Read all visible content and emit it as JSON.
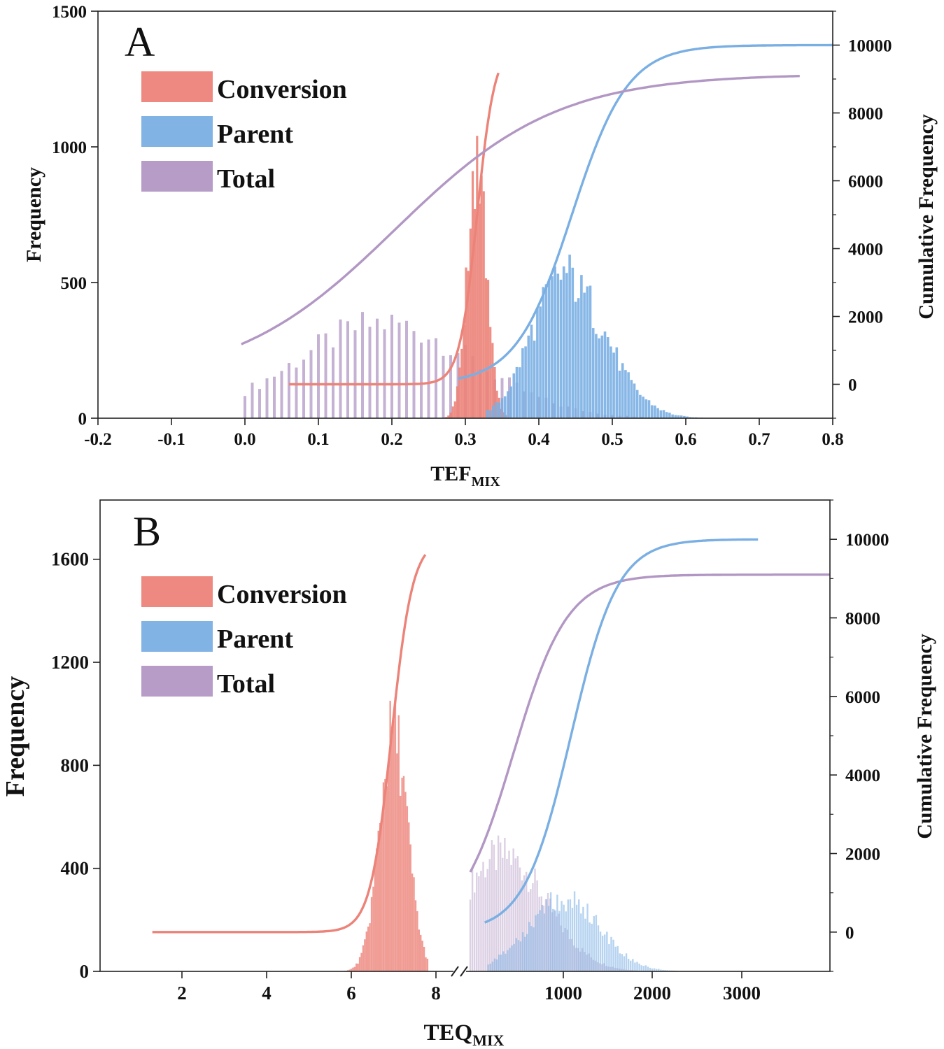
{
  "chart_data": [
    {
      "type": "bar",
      "panel_label": "A",
      "xlabel_main": "TEF",
      "xlabel_sub": "MIX",
      "ylabel": "Frequency",
      "ylabel_right": "Cumulative Frequency",
      "xlim": [
        -0.2,
        0.8
      ],
      "ylim": [
        0,
        1500
      ],
      "ylim_right": [
        -1000,
        11000
      ],
      "x_ticks": [
        "-0.2",
        "-0.1",
        "0.0",
        "0.1",
        "0.2",
        "0.3",
        "0.4",
        "0.5",
        "0.6",
        "0.7",
        "0.8"
      ],
      "x_tick_values": [
        -0.2,
        -0.1,
        0.0,
        0.1,
        0.2,
        0.3,
        0.4,
        0.5,
        0.6,
        0.7,
        0.8
      ],
      "y_ticks": [
        "0",
        "500",
        "1000",
        "1500"
      ],
      "y_tick_values": [
        0,
        500,
        1000,
        1500
      ],
      "y_right_ticks": [
        "0",
        "2000",
        "4000",
        "6000",
        "8000",
        "10000"
      ],
      "y_right_tick_values": [
        0,
        2000,
        4000,
        6000,
        8000,
        10000
      ],
      "legend": [
        {
          "name": "Conversion",
          "color": "#ec8379"
        },
        {
          "name": "Parent",
          "color": "#7aafe3"
        },
        {
          "name": "Total",
          "color": "#b297c4"
        }
      ],
      "series": [
        {
          "name": "Total",
          "kind": "hist",
          "x_start": 0.0,
          "x_end": 0.78,
          "step": 0.01,
          "params": {
            "mu": 0.19,
            "sigma": 0.12,
            "peak": 350
          }
        },
        {
          "name": "Conversion",
          "kind": "hist",
          "x_start": 0.25,
          "x_end": 0.36,
          "step": 0.003,
          "params": {
            "mu": 0.316,
            "sigma": 0.013,
            "peak": 930
          }
        },
        {
          "name": "Parent",
          "kind": "hist",
          "x_start": 0.33,
          "x_end": 0.72,
          "step": 0.004,
          "params": {
            "mu": 0.432,
            "sigma": 0.042,
            "peak": 520,
            "skew": 0.35
          }
        },
        {
          "name": "Conversion",
          "kind": "cumulative",
          "x_start": 0.06,
          "x_end": 0.345,
          "y0": 0,
          "y1": 10000,
          "mid": 0.316,
          "scale": 0.012
        },
        {
          "name": "Parent",
          "kind": "cumulative",
          "x_start": 0.29,
          "x_end": 0.8,
          "y0": 0,
          "y1": 10000,
          "mid": 0.445,
          "scale": 0.038
        },
        {
          "name": "Total",
          "kind": "cumulative",
          "x_start": -0.005,
          "x_end": 0.755,
          "y0": 0,
          "y1": 9150,
          "mid": 0.205,
          "scale": 0.11
        }
      ]
    },
    {
      "type": "bar",
      "panel_label": "B",
      "xlabel_main": "TEQ",
      "xlabel_sub": "MIX",
      "ylabel": "Frequency",
      "ylabel_right": "Cumulative Frequency",
      "x_break": "8",
      "x_ticks": [
        "2",
        "4",
        "6",
        "8",
        "1000",
        "2000",
        "3000"
      ],
      "y_ticks": [
        "0",
        "400",
        "800",
        "1200",
        "1600"
      ],
      "y_tick_values": [
        0,
        400,
        800,
        1200,
        1600
      ],
      "ylim": [
        0,
        1830
      ],
      "ylim_right": [
        -1000,
        11000
      ],
      "y_right_ticks": [
        "0",
        "2000",
        "4000",
        "6000",
        "8000",
        "10000"
      ],
      "y_right_tick_values": [
        0,
        2000,
        4000,
        6000,
        8000,
        10000
      ],
      "legend": [
        {
          "name": "Conversion",
          "color": "#ec8379"
        },
        {
          "name": "Parent",
          "color": "#7aafe3"
        },
        {
          "name": "Total",
          "color": "#b297c4"
        }
      ],
      "series": [
        {
          "name": "Conversion",
          "kind": "hist",
          "axis": "left-segment",
          "x_start": 4.0,
          "x_end": 7.8,
          "step": 0.04,
          "params": {
            "mu": 7.0,
            "sigma": 0.33,
            "peak": 930
          }
        },
        {
          "name": "Total",
          "kind": "hist",
          "axis": "right-segment",
          "x_start": 0.0,
          "x_end": 0.5,
          "step": 0.006,
          "params": {
            "mu": 0.09,
            "sigma": 0.12,
            "peak": 450
          }
        },
        {
          "name": "Parent",
          "kind": "hist",
          "axis": "right-segment",
          "x_start": 0.05,
          "x_end": 0.6,
          "step": 0.006,
          "params": {
            "mu": 0.26,
            "sigma": 0.1,
            "peak": 280
          }
        },
        {
          "name": "Conversion",
          "kind": "cumulative",
          "axis": "left-segment",
          "x_start": 1.3,
          "x_end": 7.75,
          "y0": 0,
          "y1": 10000,
          "mid": 6.95,
          "scale": 0.25
        },
        {
          "name": "Total",
          "kind": "cumulative",
          "axis": "right-segment",
          "x_start": 0.0,
          "x_end": 1.0,
          "y0": 0,
          "y1": 9100,
          "mid": 0.12,
          "scale": 0.075
        },
        {
          "name": "Parent",
          "kind": "cumulative",
          "axis": "right-segment",
          "x_start": 0.04,
          "x_end": 0.8,
          "y0": 0,
          "y1": 10000,
          "mid": 0.28,
          "scale": 0.065
        }
      ]
    }
  ]
}
